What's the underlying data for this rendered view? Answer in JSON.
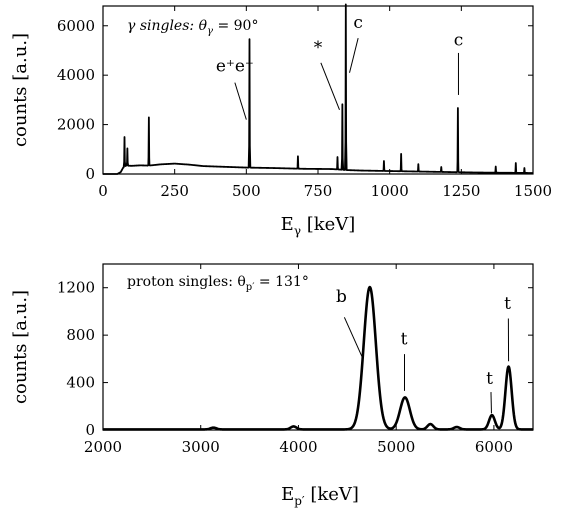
{
  "chart_data": [
    {
      "type": "line",
      "title": "γ singles: θγ = 90°",
      "title_parts": {
        "prefix": "γ singles: θ",
        "sub": "γ",
        "suffix": " = 90°"
      },
      "xlabel": "Eγ [keV]",
      "xlabel_parts": {
        "main": "E",
        "sub": "γ",
        "unit": " [keV]"
      },
      "ylabel": "counts [a.u.]",
      "xlim": [
        0,
        1500
      ],
      "ylim": [
        0,
        6800
      ],
      "xticks": [
        "0",
        "250",
        "500",
        "750",
        "1000",
        "1250",
        "1500"
      ],
      "yticks": [
        "0",
        "2000",
        "4000",
        "6000"
      ],
      "xtick_values": [
        0,
        250,
        500,
        750,
        1000,
        1250,
        1500
      ],
      "ytick_values": [
        0,
        2000,
        4000,
        6000
      ],
      "grid": false,
      "baseline": [
        [
          50,
          0
        ],
        [
          62,
          80
        ],
        [
          70,
          250
        ],
        [
          80,
          340
        ],
        [
          100,
          330
        ],
        [
          130,
          350
        ],
        [
          160,
          340
        ],
        [
          200,
          390
        ],
        [
          250,
          420
        ],
        [
          300,
          380
        ],
        [
          350,
          320
        ],
        [
          400,
          300
        ],
        [
          450,
          280
        ],
        [
          500,
          260
        ],
        [
          550,
          250
        ],
        [
          600,
          240
        ],
        [
          650,
          225
        ],
        [
          700,
          210
        ],
        [
          800,
          200
        ],
        [
          850,
          160
        ],
        [
          900,
          140
        ],
        [
          1000,
          120
        ],
        [
          1100,
          100
        ],
        [
          1200,
          80
        ],
        [
          1300,
          60
        ],
        [
          1400,
          50
        ],
        [
          1500,
          40
        ]
      ],
      "peaks": [
        {
          "x": 75,
          "height": 1200
        },
        {
          "x": 85,
          "height": 700
        },
        {
          "x": 160,
          "height": 1950
        },
        {
          "x": 511,
          "height": 5200
        },
        {
          "x": 680,
          "height": 500
        },
        {
          "x": 818,
          "height": 500
        },
        {
          "x": 835,
          "height": 2650
        },
        {
          "x": 847,
          "height": 6700
        },
        {
          "x": 980,
          "height": 400
        },
        {
          "x": 1040,
          "height": 700
        },
        {
          "x": 1100,
          "height": 300
        },
        {
          "x": 1180,
          "height": 200
        },
        {
          "x": 1238,
          "height": 2600
        },
        {
          "x": 1370,
          "height": 250
        },
        {
          "x": 1440,
          "height": 400
        },
        {
          "x": 1470,
          "height": 200
        }
      ],
      "annotations": [
        {
          "text": "e⁺e⁻",
          "x": 460,
          "y": 4150,
          "line": [
            [
              460,
              3700
            ],
            [
              500,
              2200
            ]
          ]
        },
        {
          "text": "*",
          "x": 750,
          "y": 4900,
          "line": [
            [
              760,
              4500
            ],
            [
              825,
              2600
            ]
          ]
        },
        {
          "text": "c",
          "x": 890,
          "y": 5900,
          "line": [
            [
              890,
              5500
            ],
            [
              860,
              4100
            ]
          ]
        },
        {
          "text": "c",
          "x": 1240,
          "y": 5200,
          "line": [
            [
              1240,
              4900
            ],
            [
              1240,
              3200
            ]
          ]
        }
      ]
    },
    {
      "type": "line",
      "title": "proton singles: θp′ = 131°",
      "title_parts": {
        "prefix": "proton singles: θ",
        "sub": "p′",
        "suffix": " = 131°"
      },
      "xlabel": "Ep′ [keV]",
      "xlabel_parts": {
        "main": "E",
        "sub": "p′",
        "unit": " [keV]"
      },
      "ylabel": "counts [a.u.]",
      "xlim": [
        2000,
        6400
      ],
      "ylim": [
        0,
        1400
      ],
      "xticks": [
        "2000",
        "3000",
        "4000",
        "5000",
        "6000"
      ],
      "yticks": [
        "0",
        "400",
        "800",
        "1200"
      ],
      "xtick_values": [
        2000,
        3000,
        4000,
        5000,
        6000
      ],
      "ytick_values": [
        0,
        400,
        800,
        1200
      ],
      "grid": false,
      "baseline": 5,
      "peaks": [
        {
          "x": 3130,
          "height": 15,
          "sigma": 30
        },
        {
          "x": 3950,
          "height": 25,
          "sigma": 30
        },
        {
          "x": 4730,
          "height": 1200,
          "sigma": 62
        },
        {
          "x": 5090,
          "height": 270,
          "sigma": 50
        },
        {
          "x": 5350,
          "height": 45,
          "sigma": 30
        },
        {
          "x": 5620,
          "height": 20,
          "sigma": 30
        },
        {
          "x": 5980,
          "height": 120,
          "sigma": 30
        },
        {
          "x": 6150,
          "height": 530,
          "sigma": 32
        }
      ],
      "annotations": [
        {
          "text": "b",
          "x": 4440,
          "y": 1080,
          "line": [
            [
              4470,
              950
            ],
            [
              4660,
              600
            ]
          ]
        },
        {
          "text": "t",
          "x": 5080,
          "y": 720,
          "line": [
            [
              5085,
              640
            ],
            [
              5085,
              330
            ]
          ]
        },
        {
          "text": "t",
          "x": 5955,
          "y": 390,
          "line": [
            [
              5970,
              320
            ],
            [
              5975,
              140
            ]
          ]
        },
        {
          "text": "t",
          "x": 6140,
          "y": 1020,
          "line": [
            [
              6148,
              940
            ],
            [
              6150,
              580
            ]
          ]
        }
      ]
    }
  ]
}
